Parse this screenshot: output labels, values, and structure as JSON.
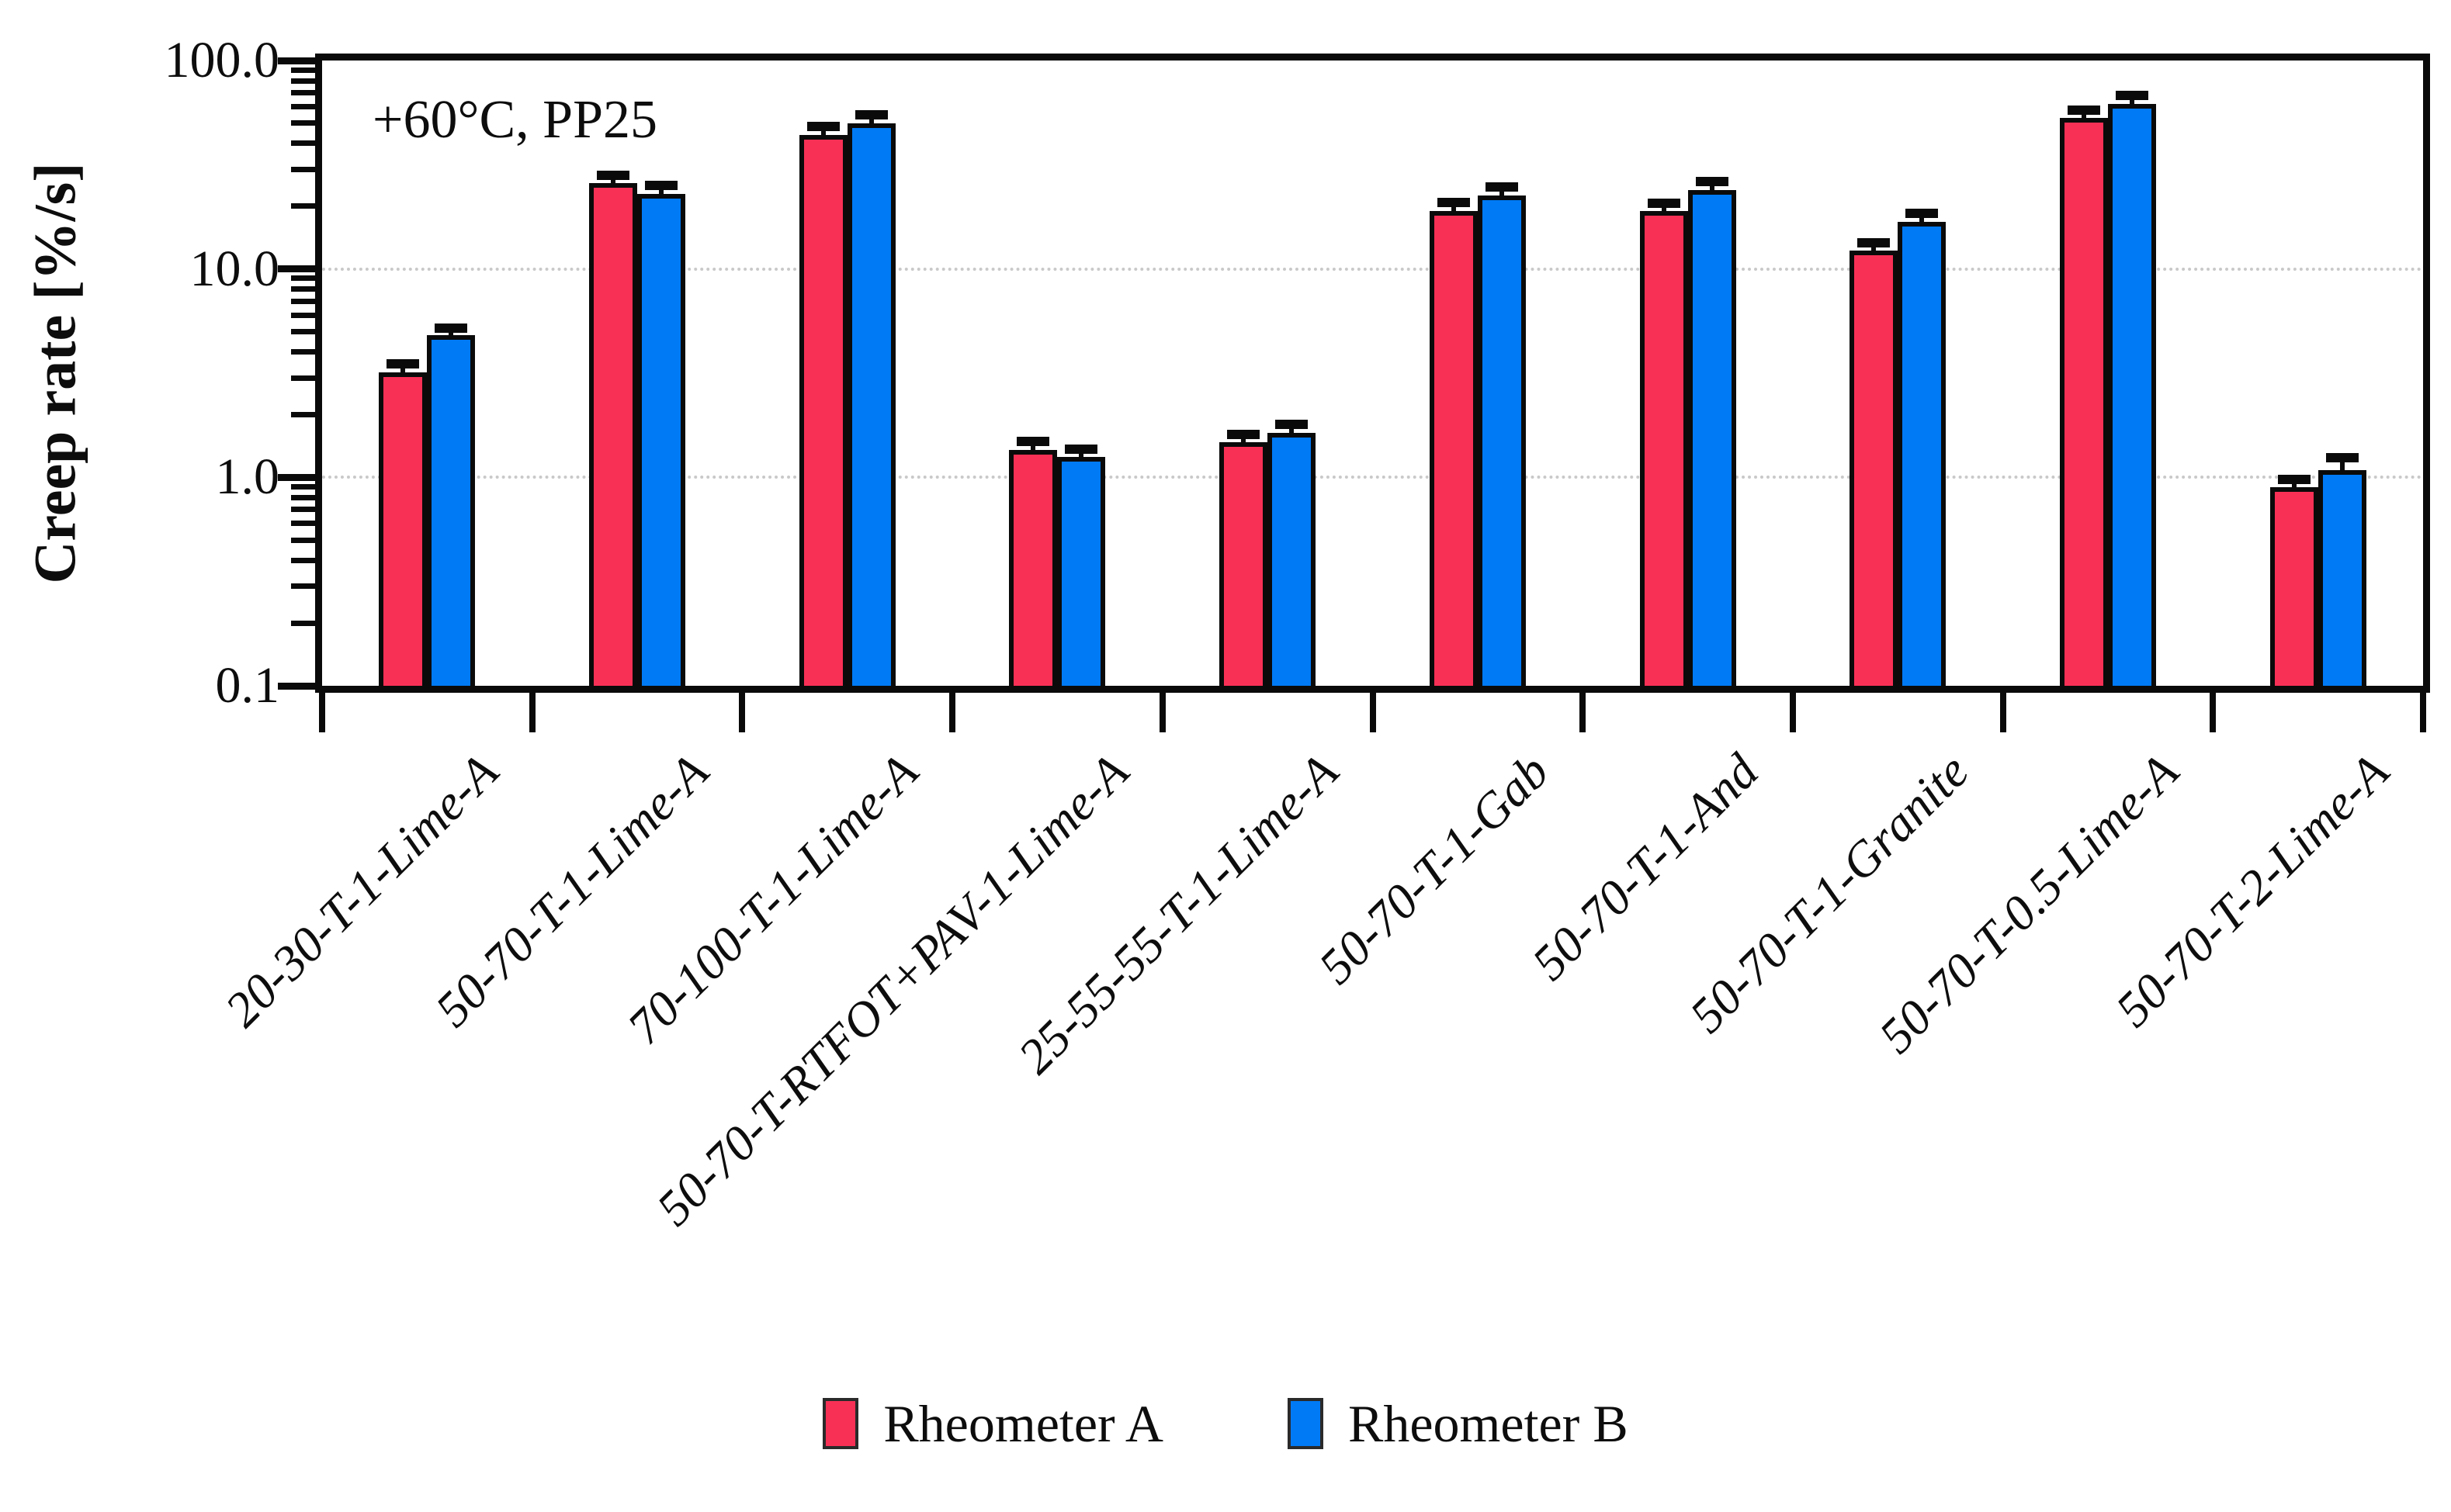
{
  "chart_data": {
    "type": "bar",
    "title_annotation": "+60°C, PP25",
    "ylabel": "Creep rate [%/s]",
    "xlabel": "",
    "y_scale": "log",
    "ylim": [
      0.1,
      100
    ],
    "grid": "horizontal dotted gridlines at decades",
    "gridline_values": [
      10,
      1
    ],
    "gridline_color": "#c9c9c9",
    "legend_position": "bottom center",
    "y_ticks": [
      {
        "label": "100.0",
        "value": 100
      },
      {
        "label": "10.0",
        "value": 10
      },
      {
        "label": "1.0",
        "value": 1
      },
      {
        "label": "0.1",
        "value": 0.1
      }
    ],
    "categories": [
      "20-30-T-1-Lime-A",
      "50-70-T-1-Lime-A",
      "70-100-T-1-Lime-A",
      "50-70-T-RTFOT+PAV-1-Lime-A",
      "25-55-55-T-1-Lime-A",
      "50-70-T-1-Gab",
      "50-70-T-1-And",
      "50-70-T-1-Granite",
      "50-70-T-0.5-Lime-A",
      "50-70-T-2-Lime-A"
    ],
    "series": [
      {
        "name": "Rheometer A",
        "color": "#F93056",
        "values": [
          3.2,
          25.8,
          44,
          1.35,
          1.47,
          18.9,
          18.9,
          12.2,
          53,
          0.9
        ],
        "errors": [
          0.12,
          1.0,
          2.0,
          0.06,
          0.06,
          0.9,
          0.8,
          0.5,
          2.0,
          0.03
        ]
      },
      {
        "name": "Rheometer B",
        "color": "#007AF5",
        "values": [
          4.8,
          22.9,
          50,
          1.25,
          1.63,
          22.5,
          24.0,
          16.8,
          62,
          1.08
        ],
        "errors": [
          0.15,
          0.9,
          2.2,
          0.05,
          0.07,
          1.0,
          1.0,
          0.7,
          2.5,
          0.1
        ]
      }
    ],
    "error_bar_color": "#0a0a0a",
    "bar_outline_color": "#0a0a0a"
  }
}
